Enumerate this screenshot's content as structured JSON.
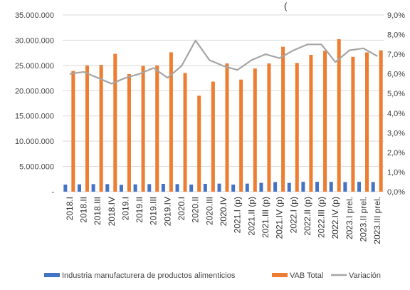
{
  "chart_data": {
    "type": "bar",
    "title": "",
    "xlabel": "",
    "ylabel": "",
    "ylim": [
      0,
      35000000
    ],
    "y2lim": [
      0,
      0.09
    ],
    "y_ticks": [
      "-",
      "5.000.000",
      "10.000.000",
      "15.000.000",
      "20.000.000",
      "25.000.000",
      "30.000.000",
      "35.000.000"
    ],
    "y2_ticks": [
      "0,0%",
      "1,0%",
      "2,0%",
      "3,0%",
      "4,0%",
      "5,0%",
      "6,0%",
      "7,0%",
      "8,0%",
      "9,0%"
    ],
    "grid": true,
    "legend_position": "bottom",
    "top_cut_text": "(",
    "categories": [
      "2018.I",
      "2018.II",
      "2018.III",
      "2018.IV",
      "2019.I",
      "2019.II",
      "2019.III",
      "2019.IV",
      "2020.I",
      "2020.II",
      "2020.III",
      "2020.IV",
      "2021.I (p)",
      "2021.II (p)",
      "2021.III (p)",
      "2021.IV (p)",
      "2022.I (p)",
      "2022.II (p)",
      "2022.III (p)",
      "2022.IV (p)",
      "2023.I prel.",
      "2023.II prel.",
      "2023.III prel."
    ],
    "series": [
      {
        "name": "Industria manufacturera de productos alimenticios",
        "kind": "bar",
        "axis": "left",
        "color": "#4472C4",
        "values": [
          1400000,
          1450000,
          1500000,
          1500000,
          1350000,
          1450000,
          1500000,
          1550000,
          1500000,
          1400000,
          1550000,
          1600000,
          1400000,
          1600000,
          1750000,
          1900000,
          1750000,
          1950000,
          1950000,
          1950000,
          1900000,
          1950000,
          1900000
        ]
      },
      {
        "name": "VAB Total",
        "kind": "bar",
        "axis": "left",
        "color": "#ED7D31",
        "values": [
          23900000,
          25000000,
          25100000,
          27300000,
          23300000,
          24900000,
          25000000,
          27600000,
          23500000,
          19000000,
          21800000,
          25400000,
          22200000,
          24400000,
          25400000,
          28700000,
          25500000,
          27100000,
          27900000,
          30200000,
          26700000,
          27600000,
          28000000
        ]
      },
      {
        "name": "Variación",
        "kind": "line",
        "axis": "right",
        "color": "#A5A5A5",
        "values": [
          0.06,
          0.061,
          0.058,
          0.055,
          0.058,
          0.06,
          0.063,
          0.058,
          0.064,
          0.077,
          0.067,
          0.064,
          0.062,
          0.067,
          0.07,
          0.068,
          0.072,
          0.075,
          0.075,
          0.066,
          0.072,
          0.073,
          0.069
        ]
      }
    ]
  }
}
